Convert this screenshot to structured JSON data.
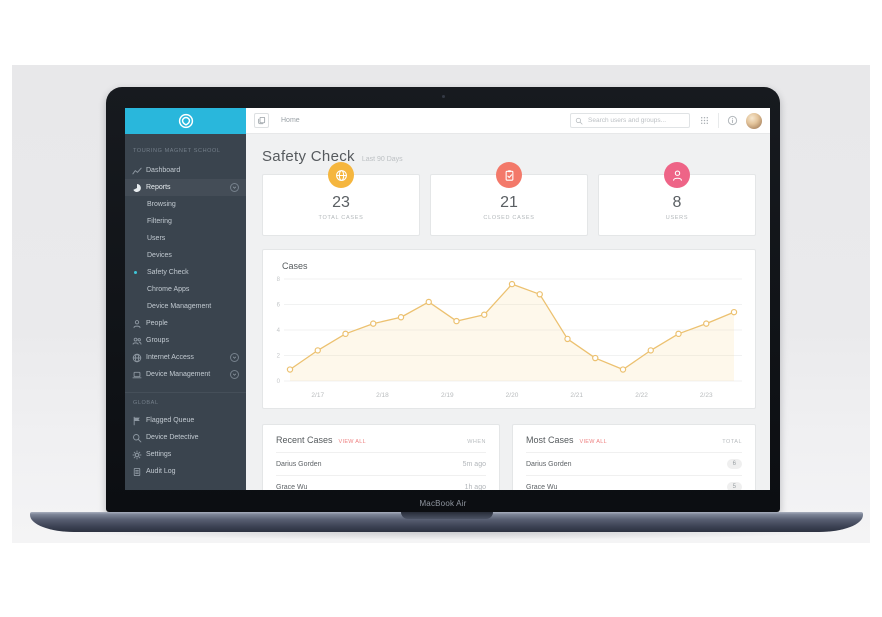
{
  "laptop": {
    "device_label": "MacBook Air"
  },
  "topbar": {
    "breadcrumb": "Home",
    "search_placeholder": "Search users and groups..."
  },
  "sidebar": {
    "school_label": "TOURING MAGNET SCHOOL",
    "sections": [
      {
        "label": "",
        "divider": false,
        "items": [
          {
            "icon": "line-chart-icon",
            "label": "Dashboard"
          },
          {
            "icon": "pie-chart-icon",
            "label": "Reports",
            "chevron": true,
            "highlighted": true
          },
          {
            "label": "Browsing",
            "sub": true
          },
          {
            "label": "Filtering",
            "sub": true
          },
          {
            "label": "Users",
            "sub": true
          },
          {
            "label": "Devices",
            "sub": true
          },
          {
            "label": "Safety Check",
            "sub": true,
            "active": true
          },
          {
            "label": "Chrome Apps",
            "sub": true
          },
          {
            "label": "Device Management",
            "sub": true
          },
          {
            "icon": "person-icon",
            "label": "People"
          },
          {
            "icon": "people-icon",
            "label": "Groups"
          },
          {
            "icon": "globe-icon",
            "label": "Internet Access",
            "chevron": true
          },
          {
            "icon": "laptop-icon",
            "label": "Device Management",
            "chevron": true
          }
        ]
      },
      {
        "label": "GLOBAL",
        "divider": true,
        "items": [
          {
            "icon": "flag-icon",
            "label": "Flagged Queue"
          },
          {
            "icon": "search-plus-icon",
            "label": "Device Detective"
          },
          {
            "icon": "gear-icon",
            "label": "Settings"
          },
          {
            "icon": "audit-doc-icon",
            "label": "Audit Log"
          }
        ]
      }
    ]
  },
  "page": {
    "title": "Safety Check",
    "subtitle": "Last 90 Days"
  },
  "stats": [
    {
      "icon": "globe-icon",
      "color": "#f5b63e",
      "value": "23",
      "label": "TOTAL CASES"
    },
    {
      "icon": "clipboard-check-icon",
      "color": "#f3796a",
      "value": "21",
      "label": "CLOSED CASES"
    },
    {
      "icon": "person-icon",
      "color": "#ee6487",
      "value": "8",
      "label": "USERS"
    }
  ],
  "chart_data": {
    "type": "line",
    "title": "Cases",
    "x_tick_labels": [
      "2/17",
      "2/18",
      "2/19",
      "2/20",
      "2/21",
      "2/22",
      "2/23"
    ],
    "x_label_point_positions": [
      1,
      3.33,
      5.67,
      8,
      10.33,
      12.67,
      15
    ],
    "values": [
      0.9,
      2.4,
      3.7,
      4.5,
      5.0,
      6.2,
      4.7,
      5.2,
      7.6,
      6.8,
      3.3,
      1.8,
      0.9,
      2.4,
      3.7,
      4.5,
      5.4
    ],
    "ylim": [
      0,
      8
    ],
    "yticks": [
      0,
      2,
      4,
      6,
      8
    ],
    "line_color": "#ecc170",
    "fill_color": "rgba(246,214,128,0.16)",
    "grid": "horizontal",
    "legend": "none"
  },
  "tables": [
    {
      "title": "Recent Cases",
      "link": "VIEW ALL",
      "value_header": "WHEN",
      "value_style": "text",
      "rows": [
        {
          "name": "Darius Gorden",
          "value": "5m ago"
        },
        {
          "name": "Grace Wu",
          "value": "1h ago"
        }
      ]
    },
    {
      "title": "Most Cases",
      "link": "VIEW ALL",
      "value_header": "TOTAL",
      "value_style": "pill",
      "rows": [
        {
          "name": "Darius Gorden",
          "value": "6"
        },
        {
          "name": "Grace Wu",
          "value": "5"
        }
      ]
    }
  ],
  "colors": {
    "accent_cyan": "#29b7dc",
    "sidebar_bg": "#3a444e",
    "content_bg": "#f0f1f2",
    "link_red": "#ee8080",
    "active_dot": "#3ec6d8"
  }
}
